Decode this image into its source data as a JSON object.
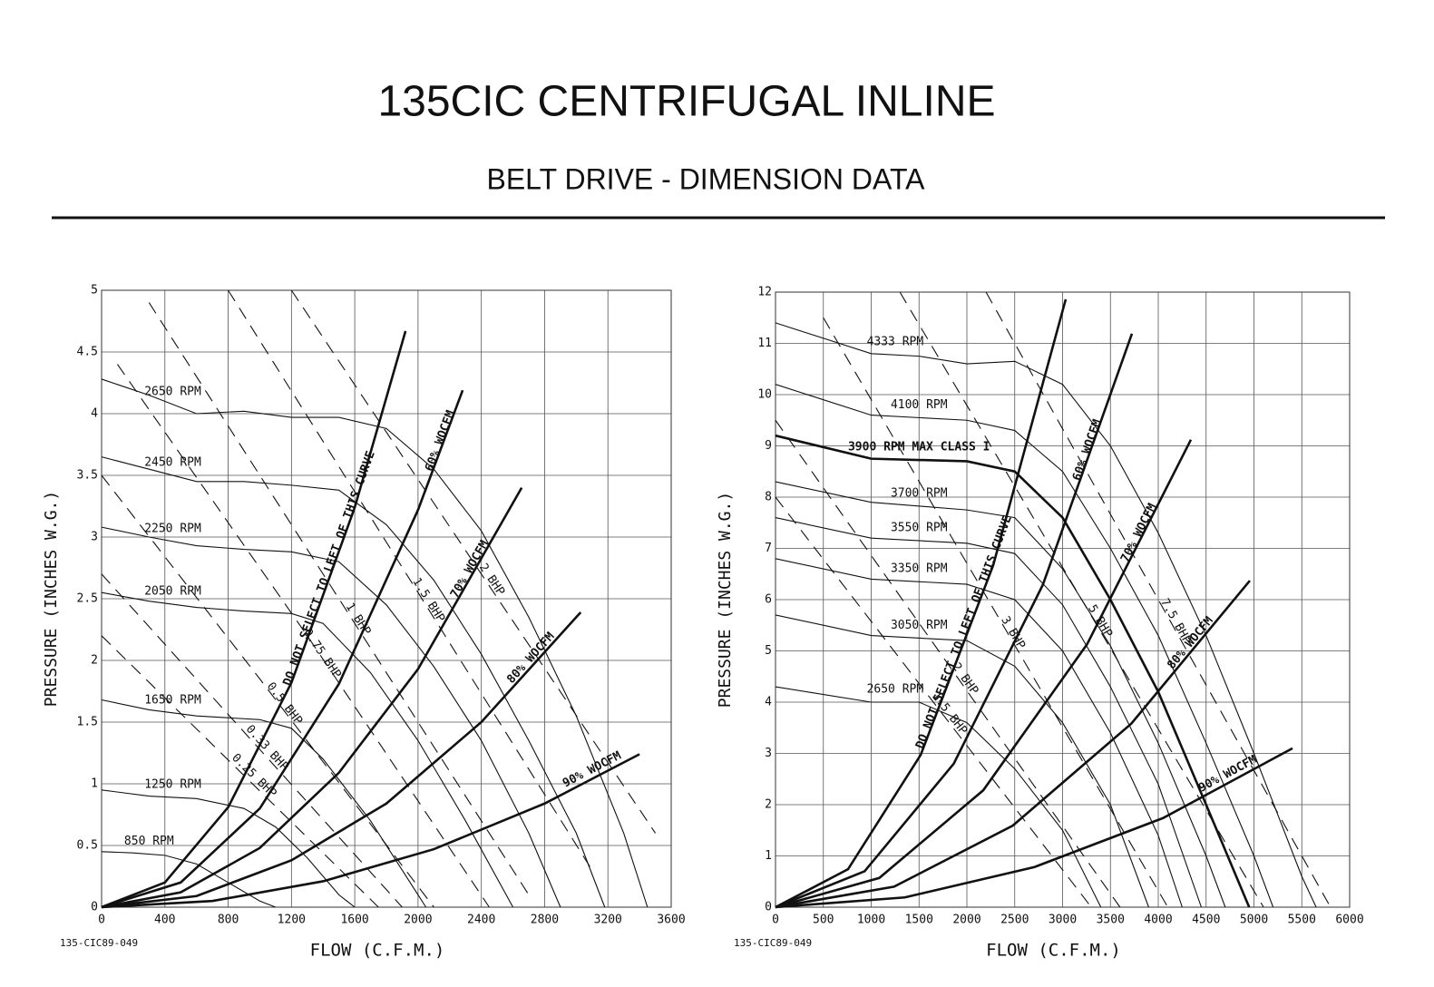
{
  "header": {
    "title": "135CIC CENTRIFUGAL INLINE",
    "subtitle": "BELT DRIVE - DIMENSION DATA"
  },
  "chart_data": [
    {
      "type": "line",
      "code": "135-CIC89-049",
      "x_label": "FLOW (C.F.M.)",
      "y_label": "PRESSURE (INCHES W.G.)",
      "xlim": [
        0,
        3600
      ],
      "ylim": [
        0,
        5
      ],
      "xticks": [
        0,
        400,
        800,
        1200,
        1600,
        2000,
        2400,
        2800,
        3200,
        3600
      ],
      "yticks": [
        0,
        0.5,
        1,
        1.5,
        2,
        2.5,
        3,
        3.5,
        4,
        4.5,
        5
      ],
      "grid": true,
      "color": "#111111",
      "series": [
        {
          "name": "2650 RPM",
          "dash": false,
          "weight": "normal",
          "x": [
            0,
            300,
            600,
            900,
            1200,
            1500,
            1800,
            2100,
            2400,
            2700,
            3000,
            3300,
            3450
          ],
          "values": [
            4.28,
            4.15,
            4.0,
            4.02,
            3.97,
            3.97,
            3.88,
            3.55,
            3.05,
            2.35,
            1.55,
            0.6,
            0
          ]
        },
        {
          "name": "2450 RPM",
          "dash": false,
          "weight": "normal",
          "x": [
            0,
            300,
            600,
            900,
            1200,
            1500,
            1800,
            2100,
            2400,
            2700,
            3000,
            3180
          ],
          "values": [
            3.65,
            3.55,
            3.45,
            3.45,
            3.42,
            3.38,
            3.1,
            2.65,
            2.05,
            1.35,
            0.6,
            0
          ]
        },
        {
          "name": "2250 RPM",
          "dash": false,
          "weight": "normal",
          "x": [
            0,
            300,
            600,
            900,
            1200,
            1500,
            1800,
            2100,
            2400,
            2700,
            2900
          ],
          "values": [
            3.08,
            3.0,
            2.93,
            2.9,
            2.88,
            2.8,
            2.45,
            1.95,
            1.35,
            0.6,
            0
          ]
        },
        {
          "name": "2050 RPM",
          "dash": false,
          "weight": "normal",
          "x": [
            0,
            300,
            600,
            900,
            1200,
            1400,
            1700,
            2000,
            2300,
            2600
          ],
          "values": [
            2.55,
            2.48,
            2.43,
            2.4,
            2.38,
            2.3,
            1.9,
            1.35,
            0.7,
            0
          ]
        },
        {
          "name": "1650 RPM",
          "dash": false,
          "weight": "normal",
          "x": [
            0,
            300,
            600,
            1000,
            1200,
            1400,
            1700,
            2000,
            2050
          ],
          "values": [
            1.68,
            1.6,
            1.55,
            1.52,
            1.45,
            1.2,
            0.7,
            0.1,
            0
          ]
        },
        {
          "name": "1250 RPM",
          "dash": false,
          "weight": "normal",
          "x": [
            0,
            300,
            600,
            900,
            1100,
            1300,
            1500,
            1600
          ],
          "values": [
            0.95,
            0.9,
            0.88,
            0.8,
            0.65,
            0.4,
            0.1,
            0
          ]
        },
        {
          "name": "850 RPM",
          "dash": false,
          "weight": "normal",
          "x": [
            0,
            200,
            400,
            600,
            800,
            1000,
            1100
          ],
          "values": [
            0.45,
            0.44,
            0.42,
            0.35,
            0.2,
            0.05,
            0
          ]
        },
        {
          "name": "DO NOT SELECT TO LEFT OF THIS CURVE",
          "dash": false,
          "weight": "bold",
          "x": [
            0,
            400,
            800,
            1200,
            1600,
            1921
          ],
          "values": [
            0,
            0.2,
            0.81,
            1.82,
            3.24,
            4.67
          ]
        },
        {
          "name": "60% WOCFM",
          "dash": false,
          "weight": "bold",
          "x": [
            0,
            500,
            1000,
            1500,
            2000,
            2282
          ],
          "values": [
            0,
            0.2,
            0.8,
            1.81,
            3.22,
            4.19
          ]
        },
        {
          "name": "70% WOCFM",
          "dash": false,
          "weight": "bold",
          "x": [
            0,
            500,
            1000,
            1500,
            2000,
            2655
          ],
          "values": [
            0,
            0.12,
            0.48,
            1.09,
            1.93,
            3.4
          ]
        },
        {
          "name": "80% WOCFM",
          "dash": false,
          "weight": "bold",
          "x": [
            0,
            600,
            1200,
            1800,
            2400,
            3028
          ],
          "values": [
            0,
            0.09,
            0.38,
            0.84,
            1.5,
            2.39
          ]
        },
        {
          "name": "90% WOCFM",
          "dash": false,
          "weight": "bold",
          "x": [
            0,
            700,
            1400,
            2100,
            2800,
            3400
          ],
          "values": [
            0,
            0.05,
            0.21,
            0.47,
            0.84,
            1.24
          ]
        },
        {
          "name": "2 BHP",
          "dash": true,
          "weight": "normal",
          "x": [
            1200,
            2400,
            3500
          ],
          "values": [
            5,
            2.7,
            0.6
          ]
        },
        {
          "name": "1.5 BHP",
          "dash": true,
          "weight": "normal",
          "x": [
            800,
            2000,
            3100
          ],
          "values": [
            5,
            2.55,
            0.3
          ]
        },
        {
          "name": "1 BHP",
          "dash": true,
          "weight": "normal",
          "x": [
            300,
            1500,
            2700
          ],
          "values": [
            4.9,
            2.5,
            0.1
          ]
        },
        {
          "name": "0.75 BHP",
          "dash": true,
          "weight": "normal",
          "x": [
            100,
            1300,
            2450
          ],
          "values": [
            4.4,
            2.2,
            0
          ]
        },
        {
          "name": "0.5 BHP",
          "dash": true,
          "weight": "normal",
          "x": [
            0,
            1000,
            2100
          ],
          "values": [
            3.5,
            1.85,
            0
          ]
        },
        {
          "name": "0.33 BHP",
          "dash": true,
          "weight": "normal",
          "x": [
            0,
            900,
            1900
          ],
          "values": [
            2.7,
            1.42,
            0
          ]
        },
        {
          "name": "0.25 BHP",
          "dash": true,
          "weight": "normal",
          "x": [
            0,
            850,
            1750
          ],
          "values": [
            2.2,
            1.13,
            0
          ]
        }
      ]
    },
    {
      "type": "line",
      "code": "135-CIC89-049",
      "x_label": "FLOW (C.F.M.)",
      "y_label": "PRESSURE (INCHES W.G.)",
      "xlim": [
        0,
        6000
      ],
      "ylim": [
        0,
        12
      ],
      "xticks": [
        0,
        500,
        1000,
        1500,
        2000,
        2500,
        3000,
        3500,
        4000,
        4500,
        5000,
        5500,
        6000
      ],
      "yticks": [
        0,
        1,
        2,
        3,
        4,
        5,
        6,
        7,
        8,
        9,
        10,
        11,
        12
      ],
      "grid": true,
      "color": "#111111",
      "series": [
        {
          "name": "4333 RPM",
          "dash": false,
          "weight": "normal",
          "x": [
            0,
            1000,
            1500,
            2000,
            2500,
            3000,
            3500,
            4000,
            4500,
            5000,
            5500,
            5650
          ],
          "values": [
            11.4,
            10.8,
            10.75,
            10.6,
            10.65,
            10.2,
            9.0,
            7.3,
            5.3,
            3.0,
            0.6,
            0
          ]
        },
        {
          "name": "4100 RPM",
          "dash": false,
          "weight": "normal",
          "x": [
            0,
            1000,
            2000,
            2500,
            3000,
            3500,
            4000,
            4500,
            5000,
            5200
          ],
          "values": [
            10.2,
            9.6,
            9.5,
            9.3,
            8.5,
            7.0,
            5.3,
            3.2,
            1.0,
            0
          ]
        },
        {
          "name": "3900 RPM MAX CLASS I",
          "dash": false,
          "weight": "bold",
          "x": [
            0,
            1000,
            2000,
            2500,
            3000,
            3500,
            4000,
            4500,
            4950
          ],
          "values": [
            9.2,
            8.75,
            8.7,
            8.5,
            7.6,
            6.0,
            4.2,
            2.0,
            0
          ]
        },
        {
          "name": "3700 RPM",
          "dash": false,
          "weight": "normal",
          "x": [
            0,
            1000,
            2000,
            2500,
            3000,
            3500,
            4000,
            4500,
            4700
          ],
          "values": [
            8.3,
            7.9,
            7.75,
            7.6,
            6.6,
            5.1,
            3.2,
            1.0,
            0
          ]
        },
        {
          "name": "3550 RPM",
          "dash": false,
          "weight": "normal",
          "x": [
            0,
            1000,
            2000,
            2500,
            3000,
            3500,
            4000,
            4450
          ],
          "values": [
            7.6,
            7.2,
            7.1,
            6.9,
            5.9,
            4.3,
            2.4,
            0
          ]
        },
        {
          "name": "3350 RPM",
          "dash": false,
          "weight": "normal",
          "x": [
            0,
            1000,
            2000,
            2500,
            3000,
            3500,
            4000,
            4250
          ],
          "values": [
            6.8,
            6.4,
            6.3,
            6.0,
            5.0,
            3.4,
            1.4,
            0
          ]
        },
        {
          "name": "3050 RPM",
          "dash": false,
          "weight": "normal",
          "x": [
            0,
            1000,
            2000,
            2500,
            3000,
            3500,
            3900
          ],
          "values": [
            5.7,
            5.3,
            5.2,
            4.7,
            3.6,
            2.0,
            0
          ]
        },
        {
          "name": "2650 RPM",
          "dash": false,
          "weight": "normal",
          "x": [
            0,
            1000,
            1500,
            2000,
            2500,
            3000,
            3400
          ],
          "values": [
            4.3,
            4.0,
            4.0,
            3.6,
            2.7,
            1.5,
            0
          ]
        },
        {
          "name": "DO NOT SELECT TO LEFT OF THIS CURVE",
          "dash": false,
          "weight": "bold",
          "x": [
            0,
            758,
            1517,
            2275,
            3033
          ],
          "values": [
            0,
            0.74,
            2.97,
            6.67,
            11.86
          ]
        },
        {
          "name": "60% WOCFM",
          "dash": false,
          "weight": "bold",
          "x": [
            0,
            931,
            1863,
            2794,
            3725
          ],
          "values": [
            0,
            0.7,
            2.8,
            6.29,
            11.19
          ]
        },
        {
          "name": "70% WOCFM",
          "dash": false,
          "weight": "bold",
          "x": [
            0,
            1085,
            2171,
            3256,
            4341
          ],
          "values": [
            0,
            0.57,
            2.28,
            5.13,
            9.12
          ]
        },
        {
          "name": "80% WOCFM",
          "dash": false,
          "weight": "bold",
          "x": [
            0,
            1239,
            2479,
            3718,
            4957
          ],
          "values": [
            0,
            0.4,
            1.59,
            3.58,
            6.37
          ]
        },
        {
          "name": "90% WOCFM",
          "dash": false,
          "weight": "bold",
          "x": [
            0,
            1351,
            2702,
            4052,
            5403
          ],
          "values": [
            0,
            0.19,
            0.78,
            1.74,
            3.1
          ]
        },
        {
          "name": "7.5 BHP",
          "dash": true,
          "weight": "normal",
          "x": [
            2200,
            4000,
            5800
          ],
          "values": [
            12,
            6,
            0
          ]
        },
        {
          "name": "5 BHP",
          "dash": true,
          "weight": "normal",
          "x": [
            1300,
            3200,
            5100
          ],
          "values": [
            12,
            6,
            0
          ]
        },
        {
          "name": "3 BHP",
          "dash": true,
          "weight": "normal",
          "x": [
            500,
            2300,
            4100
          ],
          "values": [
            11.5,
            5.75,
            0
          ]
        },
        {
          "name": "2 BHP",
          "dash": true,
          "weight": "normal",
          "x": [
            0,
            1800,
            3600
          ],
          "values": [
            9.5,
            4.75,
            0
          ]
        },
        {
          "name": "1.5 BHP",
          "dash": true,
          "weight": "normal",
          "x": [
            0,
            1650,
            3300
          ],
          "values": [
            8,
            4,
            0
          ]
        }
      ]
    }
  ]
}
